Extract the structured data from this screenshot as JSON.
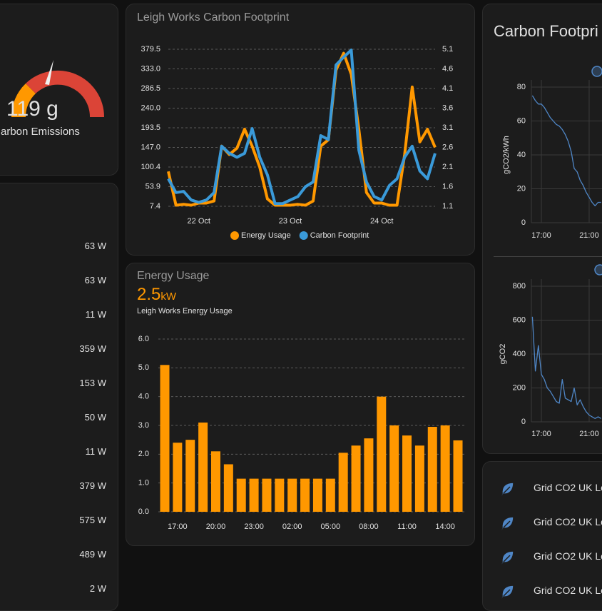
{
  "gauge": {
    "value_text": "119 g",
    "label": "arbon Emissions"
  },
  "power_list": [
    "63 W",
    "63 W",
    "11 W",
    "359 W",
    "153 W",
    "50 W",
    "11 W",
    "379 W",
    "575 W",
    "489 W",
    "2 W"
  ],
  "chart_data": [
    {
      "type": "line",
      "title": "Leigh Works Carbon Footprint",
      "categories": [
        null,
        null,
        null,
        null,
        "22 Oct",
        null,
        null,
        null,
        null,
        null,
        null,
        null,
        null,
        null,
        null,
        null,
        "23 Oct",
        null,
        null,
        null,
        null,
        null,
        null,
        null,
        null,
        null,
        null,
        null,
        "24 Oct",
        null,
        null,
        null,
        null,
        null,
        null,
        null
      ],
      "series": [
        {
          "name": "Energy Usage",
          "color": "#ff9800",
          "values": [
            90,
            10,
            12,
            10,
            15,
            15,
            20,
            150,
            130,
            145,
            190,
            150,
            100,
            25,
            10,
            10,
            10,
            12,
            10,
            20,
            150,
            165,
            330,
            370,
            320,
            190,
            40,
            15,
            15,
            10,
            10,
            130,
            290,
            160,
            190,
            147
          ]
        },
        {
          "name": "Carbon Footprint",
          "color": "#3a9ad9",
          "axis": "y2",
          "values": [
            1.8,
            1.45,
            1.48,
            1.26,
            1.2,
            1.26,
            1.45,
            2.63,
            2.45,
            2.35,
            2.45,
            3.08,
            2.35,
            1.9,
            1.17,
            1.17,
            1.26,
            1.35,
            1.6,
            1.72,
            2.9,
            2.8,
            4.7,
            4.9,
            5.08,
            2.53,
            1.72,
            1.35,
            1.26,
            1.63,
            1.8,
            2.35,
            2.63,
            2.0,
            1.8,
            2.45
          ]
        }
      ],
      "ylim": [
        7.4,
        379.5
      ],
      "yticks": [
        7.4,
        53.9,
        100.4,
        {
          "value": 147,
          "label": "147.0"
        },
        193.5,
        {
          "value": 240,
          "label": "240.0"
        },
        286.5,
        {
          "value": 333,
          "label": "333.0"
        },
        379.5
      ],
      "y2lim": [
        1.1,
        5.1
      ],
      "y2ticks": [
        1.1,
        1.6,
        2.1,
        2.6,
        3.1,
        3.6,
        4.1,
        4.6,
        5.1
      ],
      "grid": true,
      "legend": "bottom"
    },
    {
      "type": "bar",
      "title": "Energy Usage",
      "value": 2.5,
      "unit": "kW",
      "subtitle": "Leigh Works Energy Usage",
      "color": "#ff9800",
      "categories": [
        null,
        "17:00",
        null,
        null,
        "20:00",
        null,
        null,
        "23:00",
        null,
        null,
        "02:00",
        null,
        null,
        "05:00",
        null,
        null,
        "08:00",
        null,
        null,
        "11:00",
        null,
        null,
        "14:00",
        null
      ],
      "values": [
        5.1,
        2.4,
        2.5,
        3.1,
        2.1,
        1.65,
        1.15,
        1.15,
        1.15,
        1.15,
        1.15,
        1.15,
        1.15,
        1.15,
        2.05,
        2.3,
        2.55,
        4.0,
        3.0,
        2.65,
        2.3,
        2.95,
        3.0,
        2.48
      ],
      "ylim": [
        0,
        6
      ],
      "yticks": [
        {
          "value": 0,
          "label": "0.0"
        },
        {
          "value": 1,
          "label": "1.0"
        },
        {
          "value": 2,
          "label": "2.0"
        },
        {
          "value": 3,
          "label": "3.0"
        },
        {
          "value": 4,
          "label": "4.0"
        },
        {
          "value": 5,
          "label": "5.0"
        },
        {
          "value": 6,
          "label": "6.0"
        }
      ],
      "grid": true
    },
    {
      "type": "line",
      "title": "Carbon Footpri",
      "ylabel": "gCO2/kWh",
      "categories": [
        null,
        null,
        null,
        "17:00",
        null,
        null,
        null,
        null,
        null,
        null,
        null,
        null,
        null,
        null,
        null,
        null,
        null,
        null,
        null,
        "21:00",
        null,
        null,
        null,
        null
      ],
      "series": [
        {
          "color": "#4f86c6",
          "values": [
            75,
            72,
            70,
            70,
            68,
            65,
            62,
            60,
            58,
            57,
            55,
            52,
            48,
            42,
            32,
            30,
            25,
            22,
            18,
            15,
            12,
            10,
            12,
            12
          ]
        }
      ],
      "ylim": [
        0,
        80
      ],
      "yticks": [
        0,
        20,
        40,
        60,
        80
      ],
      "grid": true
    },
    {
      "type": "line",
      "ylabel": "gCO2",
      "categories": [
        null,
        null,
        null,
        "17:00",
        null,
        null,
        null,
        null,
        null,
        null,
        null,
        null,
        null,
        null,
        null,
        null,
        null,
        null,
        null,
        "21:00",
        null,
        null,
        null,
        null
      ],
      "series": [
        {
          "color": "#4f86c6",
          "values": [
            620,
            300,
            450,
            280,
            250,
            200,
            180,
            150,
            120,
            110,
            250,
            140,
            130,
            120,
            200,
            100,
            130,
            90,
            60,
            40,
            30,
            20,
            30,
            20
          ]
        }
      ],
      "ylim": [
        0,
        800
      ],
      "yticks": [
        0,
        200,
        400,
        600,
        800
      ],
      "grid": true
    }
  ],
  "grid_list": [
    "Grid CO2 UK Lo",
    "Grid CO2 UK Lo",
    "Grid CO2 UK Lo",
    "Grid CO2 UK Lo"
  ]
}
